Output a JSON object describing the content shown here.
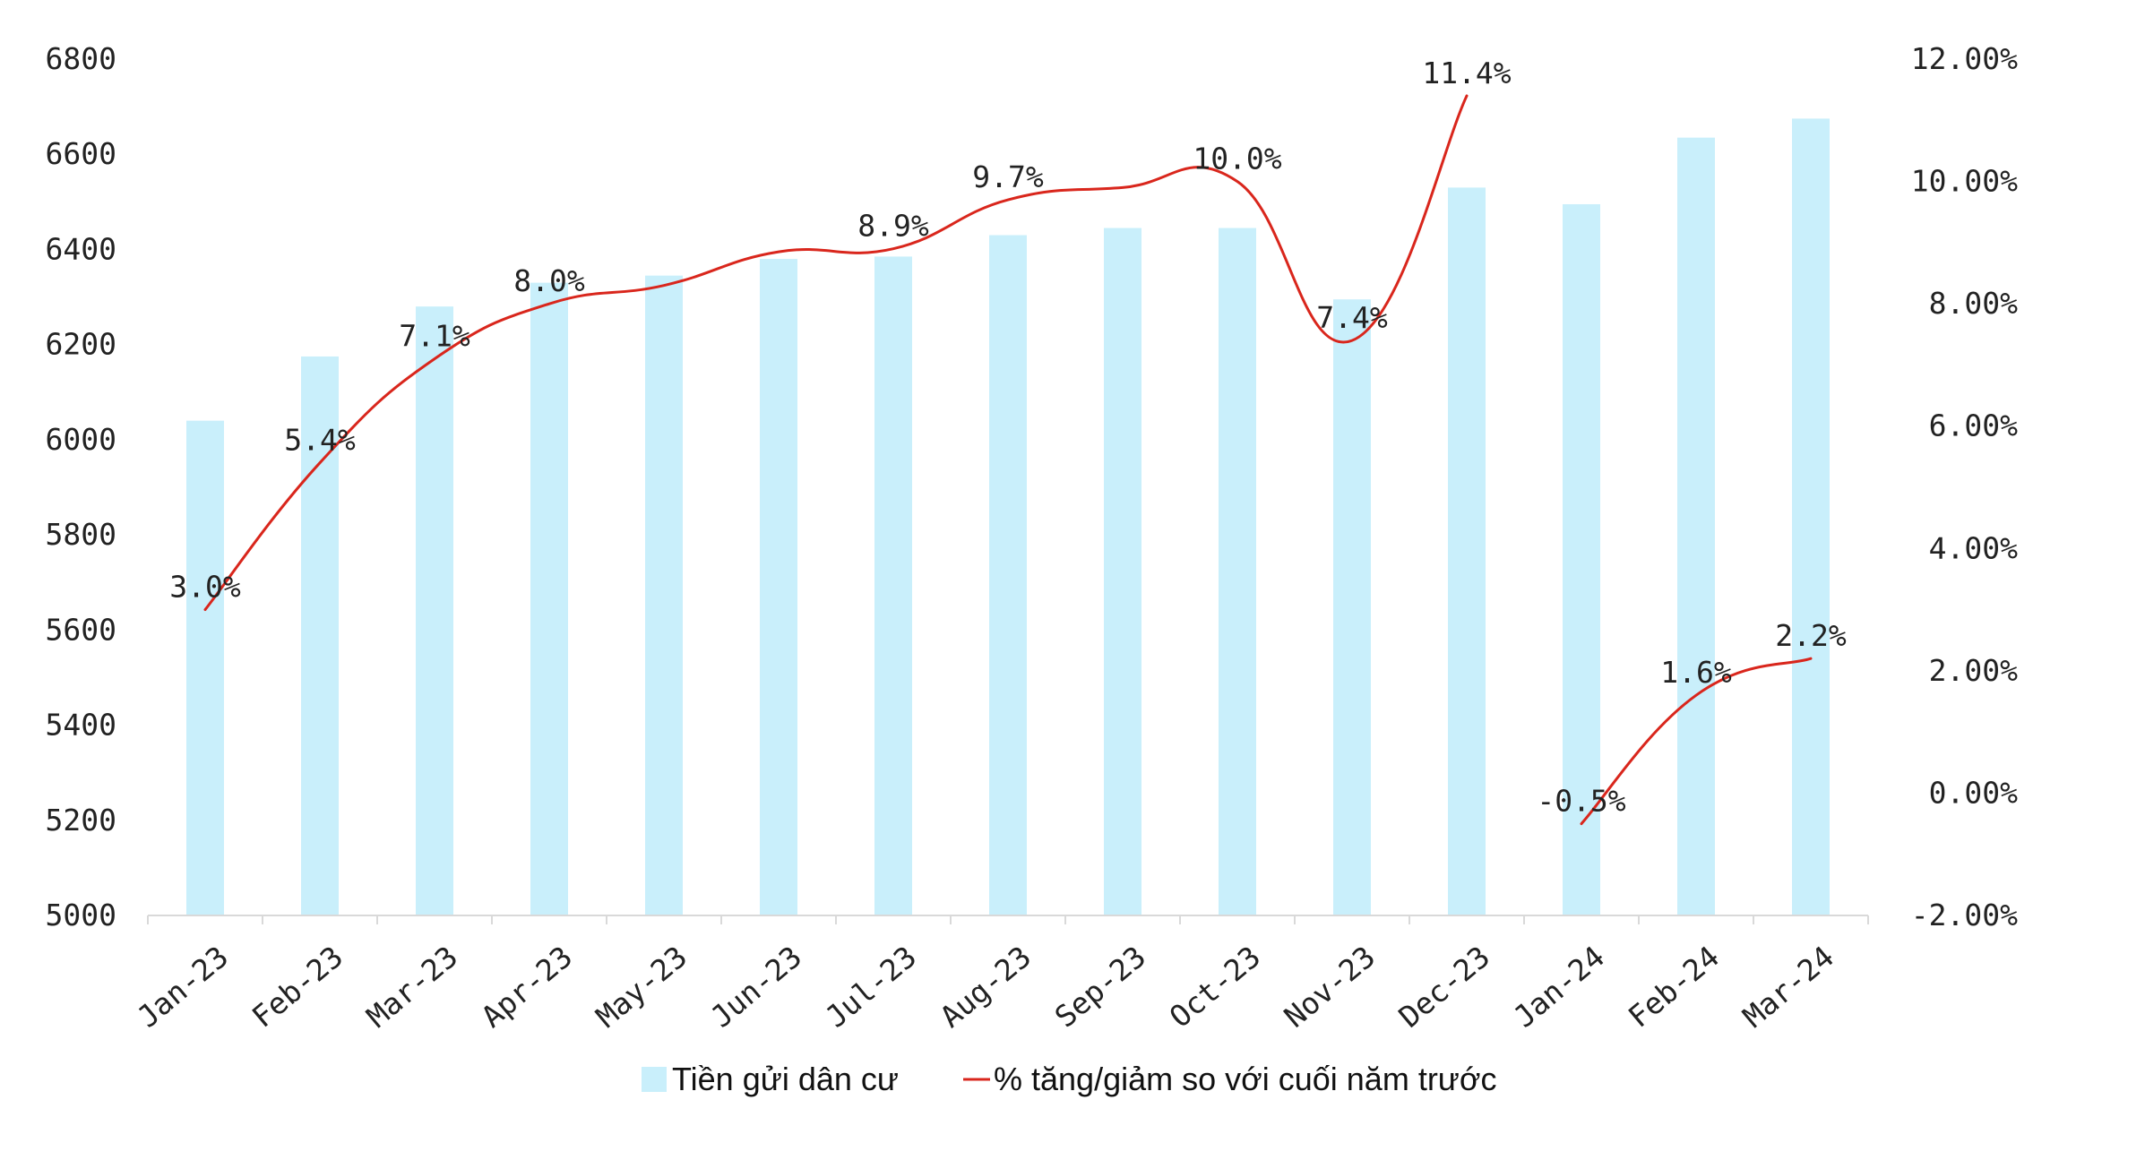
{
  "chart_data": {
    "type": "bar+line",
    "categories": [
      "Jan-23",
      "Feb-23",
      "Mar-23",
      "Apr-23",
      "May-23",
      "Jun-23",
      "Jul-23",
      "Aug-23",
      "Sep-23",
      "Oct-23",
      "Nov-23",
      "Dec-23",
      "Jan-24",
      "Feb-24",
      "Mar-24"
    ],
    "series": [
      {
        "name": "Tiền gửi dân cư",
        "type": "bar",
        "axis": "left",
        "color": "#c9effb",
        "values": [
          6040,
          6175,
          6280,
          6330,
          6345,
          6380,
          6385,
          6430,
          6445,
          6445,
          6295,
          6530,
          6495,
          6635,
          6675
        ]
      },
      {
        "name": "% tăng/giảm so với cuối năm trước",
        "type": "line",
        "axis": "right",
        "color": "#d9261c",
        "segments": [
          {
            "x": [
              "Jan-23",
              "Feb-23",
              "Mar-23",
              "Apr-23",
              "May-23",
              "Jun-23",
              "Jul-23",
              "Aug-23",
              "Sep-23",
              "Oct-23",
              "Nov-23",
              "Dec-23"
            ],
            "values": [
              3.0,
              5.4,
              7.1,
              8.0,
              8.3,
              8.85,
              8.9,
              9.7,
              9.9,
              10.0,
              7.4,
              11.4
            ],
            "labels": [
              "3.0%",
              "5.4%",
              "7.1%",
              "8.0%",
              "",
              "",
              "8.9%",
              "9.7%",
              "",
              "10.0%",
              "7.4%",
              "11.4%"
            ]
          },
          {
            "x": [
              "Jan-24",
              "Feb-24",
              "Mar-24"
            ],
            "values": [
              -0.5,
              1.6,
              2.2
            ],
            "labels": [
              "-0.5%",
              "1.6%",
              "2.2%"
            ]
          }
        ]
      }
    ],
    "y_left": {
      "min": 5000,
      "max": 6800,
      "ticks": [
        "5000",
        "5200",
        "5400",
        "5600",
        "5800",
        "6000",
        "6200",
        "6400",
        "6600",
        "6800"
      ]
    },
    "y_right": {
      "min": -2,
      "max": 12,
      "ticks": [
        "-2.00%",
        "0.00%",
        "2.00%",
        "4.00%",
        "6.00%",
        "8.00%",
        "10.00%",
        "12.00%"
      ]
    },
    "grid": false,
    "legend": {
      "position": "bottom",
      "items": [
        {
          "label": "Tiền gửi dân cư",
          "marker": "bar",
          "color": "#c9effb"
        },
        {
          "label": "% tăng/giảm so với cuối năm trước",
          "marker": "line",
          "color": "#d9261c"
        }
      ]
    }
  }
}
